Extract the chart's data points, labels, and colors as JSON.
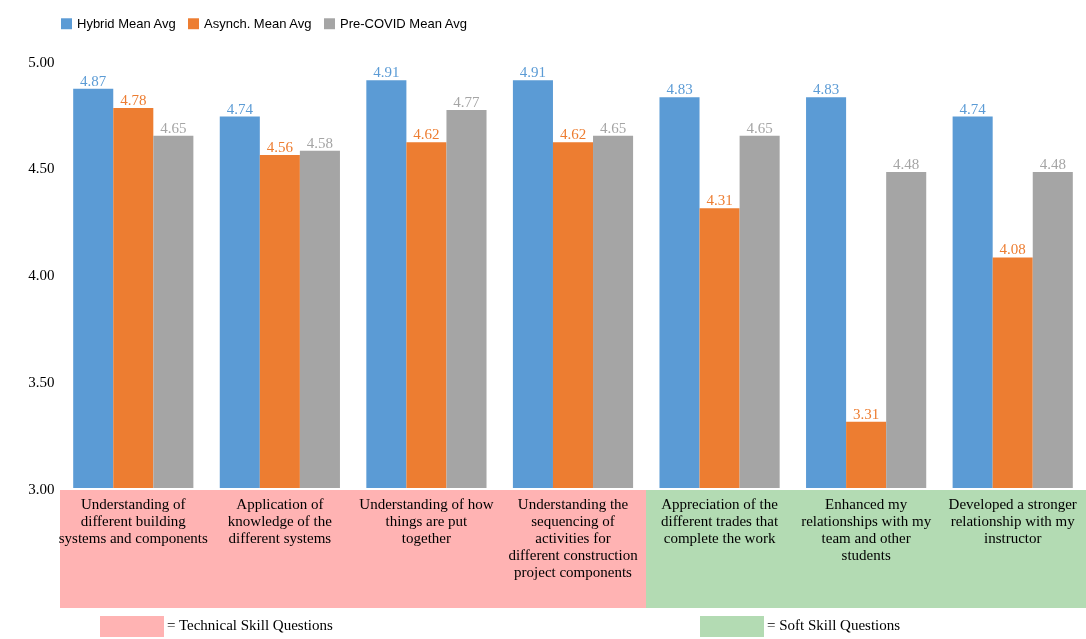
{
  "chart_data": {
    "type": "bar",
    "categories": [
      "Understanding of different building systems and components",
      "Application of knowledge of the different systems",
      "Understanding of how things are put together",
      "Understanding the sequencing of activities for different construction project components",
      "Appreciation of the different trades that complete the work",
      "Enhanced my relationships with my team and other students",
      "Developed a stronger relationship with my instructor"
    ],
    "series": [
      {
        "name": "Hybrid Mean Avg",
        "color": "#5b9bd5",
        "values": [
          4.87,
          4.74,
          4.91,
          4.91,
          4.83,
          4.83,
          4.74
        ]
      },
      {
        "name": "Asynch. Mean Avg",
        "color": "#ed7d31",
        "values": [
          4.78,
          4.56,
          4.62,
          4.62,
          4.31,
          3.31,
          4.08
        ]
      },
      {
        "name": "Pre-COVID Mean Avg",
        "color": "#a5a5a5",
        "values": [
          4.65,
          4.58,
          4.77,
          4.65,
          4.65,
          4.48,
          4.48
        ]
      }
    ],
    "ylim": [
      3,
      5
    ],
    "yticks": [
      {
        "value": 3,
        "label": "3.00"
      },
      {
        "value": 3.5,
        "label": "3.50"
      },
      {
        "value": 4,
        "label": "4.00"
      },
      {
        "value": 4.5,
        "label": "4.50"
      },
      {
        "value": 5,
        "label": "5.00"
      }
    ],
    "data_labels": true,
    "legend": "top",
    "grid": false,
    "annotations": [
      "= Technical Skill Questions",
      "= Soft Skill Questions"
    ]
  }
}
